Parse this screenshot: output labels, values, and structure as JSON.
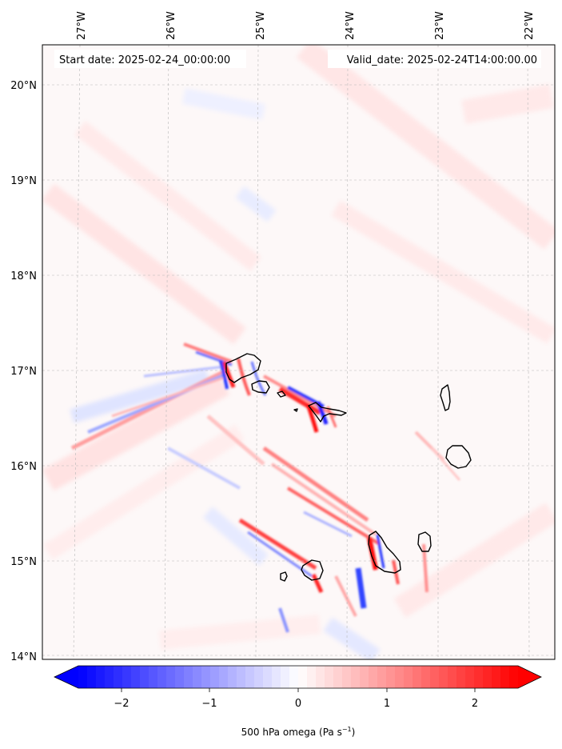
{
  "map": {
    "start_label": "Start date: 2025-02-24_00:00:00",
    "valid_label": "Valid_date: 2025-02-24T14:00:00.00",
    "lon_ticks": [
      "27°W",
      "26°W",
      "25°W",
      "24°W",
      "23°W",
      "22°W"
    ],
    "lat_ticks": [
      "20°N",
      "19°N",
      "18°N",
      "17°N",
      "16°N",
      "15°N",
      "14°N"
    ],
    "extent": {
      "lon_min": -27.42,
      "lon_max": -21.8,
      "lat_min": 13.96,
      "lat_max": 20.42
    }
  },
  "colorbar": {
    "label": "500 hPa omega (Pa s",
    "label_sup": "−1",
    "label_close": ")",
    "ticks": [
      "−2",
      "−1",
      "0",
      "1",
      "2"
    ],
    "vmin": -2.5,
    "vmax": 2.5,
    "colors": {
      "negative": "#0000ff",
      "zero": "#ffffff",
      "positive": "#ff0000"
    }
  }
}
